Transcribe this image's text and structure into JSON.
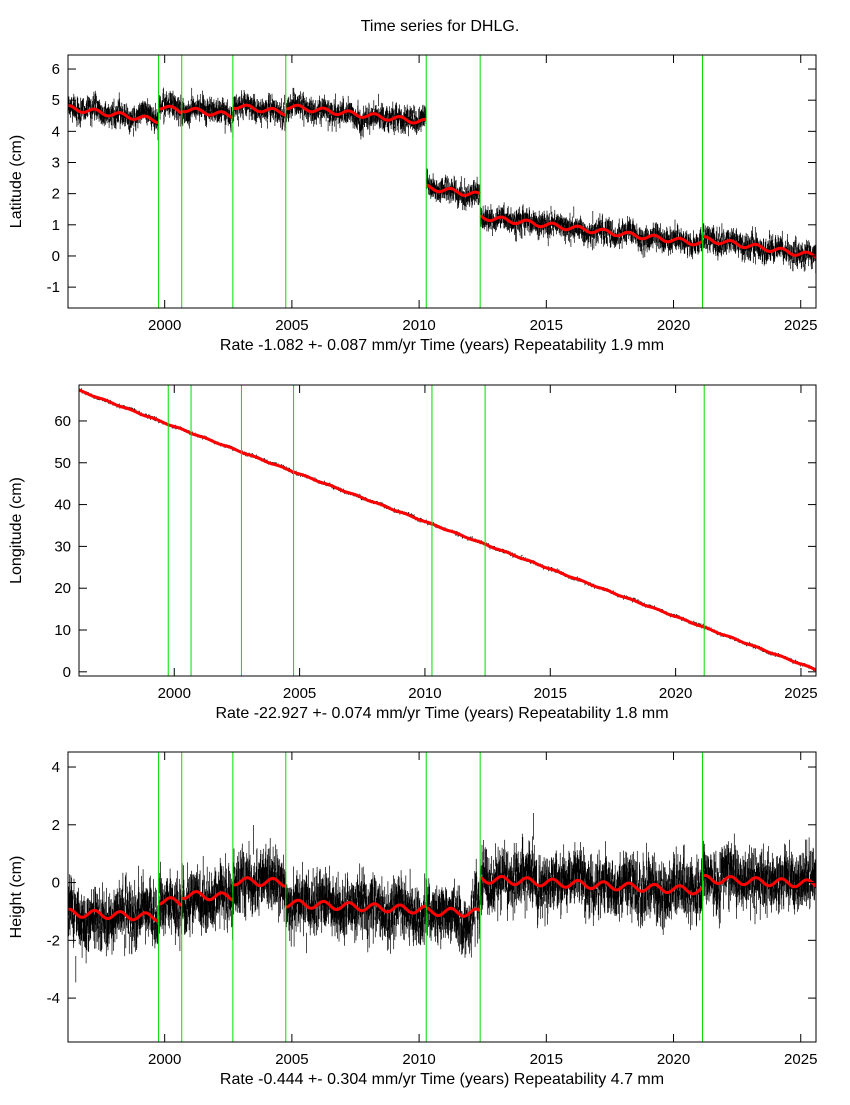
{
  "chart_data": [
    {
      "type": "scatter",
      "title": "Time series for DHLG.",
      "ylabel": "Latitude (cm)",
      "xlabel": "Rate -1.082 +- 0.087 mm/yr    Time (years)    Repeatability 1.9 mm",
      "xlim": [
        1996.2,
        2025.6
      ],
      "ylim": [
        -1.67,
        6.45
      ],
      "xticks": [
        "2000",
        "2005",
        "2010",
        "2015",
        "2020",
        "2025"
      ],
      "yticks": [
        "-1",
        "0",
        "1",
        "2",
        "3",
        "4",
        "5",
        "6"
      ],
      "break_epochs": [
        1999.76,
        2000.67,
        2002.68,
        2004.76,
        2010.28,
        2012.4,
        2021.14
      ],
      "noise_cm": 0.22,
      "annual_amplitude_cm": 0.08,
      "fit_segments": [
        {
          "start": 1996.2,
          "end": 1999.76,
          "from": 4.75,
          "to": 4.35
        },
        {
          "start": 1999.76,
          "end": 2000.67,
          "from": 4.8,
          "to": 4.65
        },
        {
          "start": 2000.67,
          "end": 2002.68,
          "from": 4.72,
          "to": 4.5
        },
        {
          "start": 2002.68,
          "end": 2004.76,
          "from": 4.82,
          "to": 4.6
        },
        {
          "start": 2004.76,
          "end": 2010.28,
          "from": 4.8,
          "to": 4.3
        },
        {
          "start": 2010.28,
          "end": 2012.4,
          "from": 2.2,
          "to": 1.95
        },
        {
          "start": 2012.4,
          "end": 2021.14,
          "from": 1.25,
          "to": 0.4
        },
        {
          "start": 2021.14,
          "end": 2025.6,
          "from": 0.55,
          "to": 0.0
        }
      ],
      "colors": {
        "data": "#000000",
        "fit": "#ff0000",
        "breaks": "#00dd00"
      }
    },
    {
      "type": "scatter",
      "ylabel": "Longitude (cm)",
      "xlabel": "Rate -22.927 +- 0.074 mm/yr    Time (years)    Repeatability 1.8 mm",
      "xlim": [
        1996.2,
        2025.6
      ],
      "ylim": [
        -1,
        68.6
      ],
      "xticks": [
        "2000",
        "2005",
        "2010",
        "2015",
        "2020",
        "2025"
      ],
      "yticks": [
        "0",
        "10",
        "20",
        "30",
        "40",
        "50",
        "60"
      ],
      "break_epochs": [
        1999.76,
        2000.67,
        2002.68,
        2004.76,
        2010.28,
        2012.4,
        2021.14
      ],
      "noise_cm": 0.25,
      "annual_amplitude_cm": 0.1,
      "fit_segments": [
        {
          "start": 1996.2,
          "end": 2025.6,
          "from": 67.3,
          "to": 0.5
        }
      ],
      "colors": {
        "data": "#000000",
        "fit": "#ff0000",
        "breaks": "#00dd00"
      }
    },
    {
      "type": "scatter",
      "ylabel": "Height (cm)",
      "xlabel": "Rate -0.444 +- 0.304 mm/yr    Time (years)    Repeatability 4.7 mm",
      "xlim": [
        1996.2,
        2025.6
      ],
      "ylim": [
        -5.52,
        4.52
      ],
      "xticks": [
        "2000",
        "2005",
        "2010",
        "2015",
        "2020",
        "2025"
      ],
      "yticks": [
        "-4",
        "-2",
        "0",
        "2",
        "4"
      ],
      "break_epochs": [
        1999.76,
        2000.67,
        2002.68,
        2004.76,
        2010.28,
        2012.4,
        2021.14
      ],
      "noise_cm": 0.55,
      "annual_amplitude_cm": 0.13,
      "fit_segments": [
        {
          "start": 1996.2,
          "end": 1999.76,
          "from": -1.05,
          "to": -1.2
        },
        {
          "start": 1999.76,
          "end": 2000.67,
          "from": -0.62,
          "to": -0.68
        },
        {
          "start": 2000.67,
          "end": 2002.68,
          "from": -0.42,
          "to": -0.5
        },
        {
          "start": 2002.68,
          "end": 2004.76,
          "from": 0.05,
          "to": 0.0
        },
        {
          "start": 2004.76,
          "end": 2010.28,
          "from": -0.72,
          "to": -0.95
        },
        {
          "start": 2010.28,
          "end": 2012.4,
          "from": -1.0,
          "to": -1.05
        },
        {
          "start": 2012.4,
          "end": 2021.14,
          "from": 0.12,
          "to": -0.28
        },
        {
          "start": 2021.14,
          "end": 2025.6,
          "from": 0.12,
          "to": -0.05
        }
      ],
      "colors": {
        "data": "#000000",
        "fit": "#ff0000",
        "breaks": "#00dd00"
      }
    }
  ]
}
